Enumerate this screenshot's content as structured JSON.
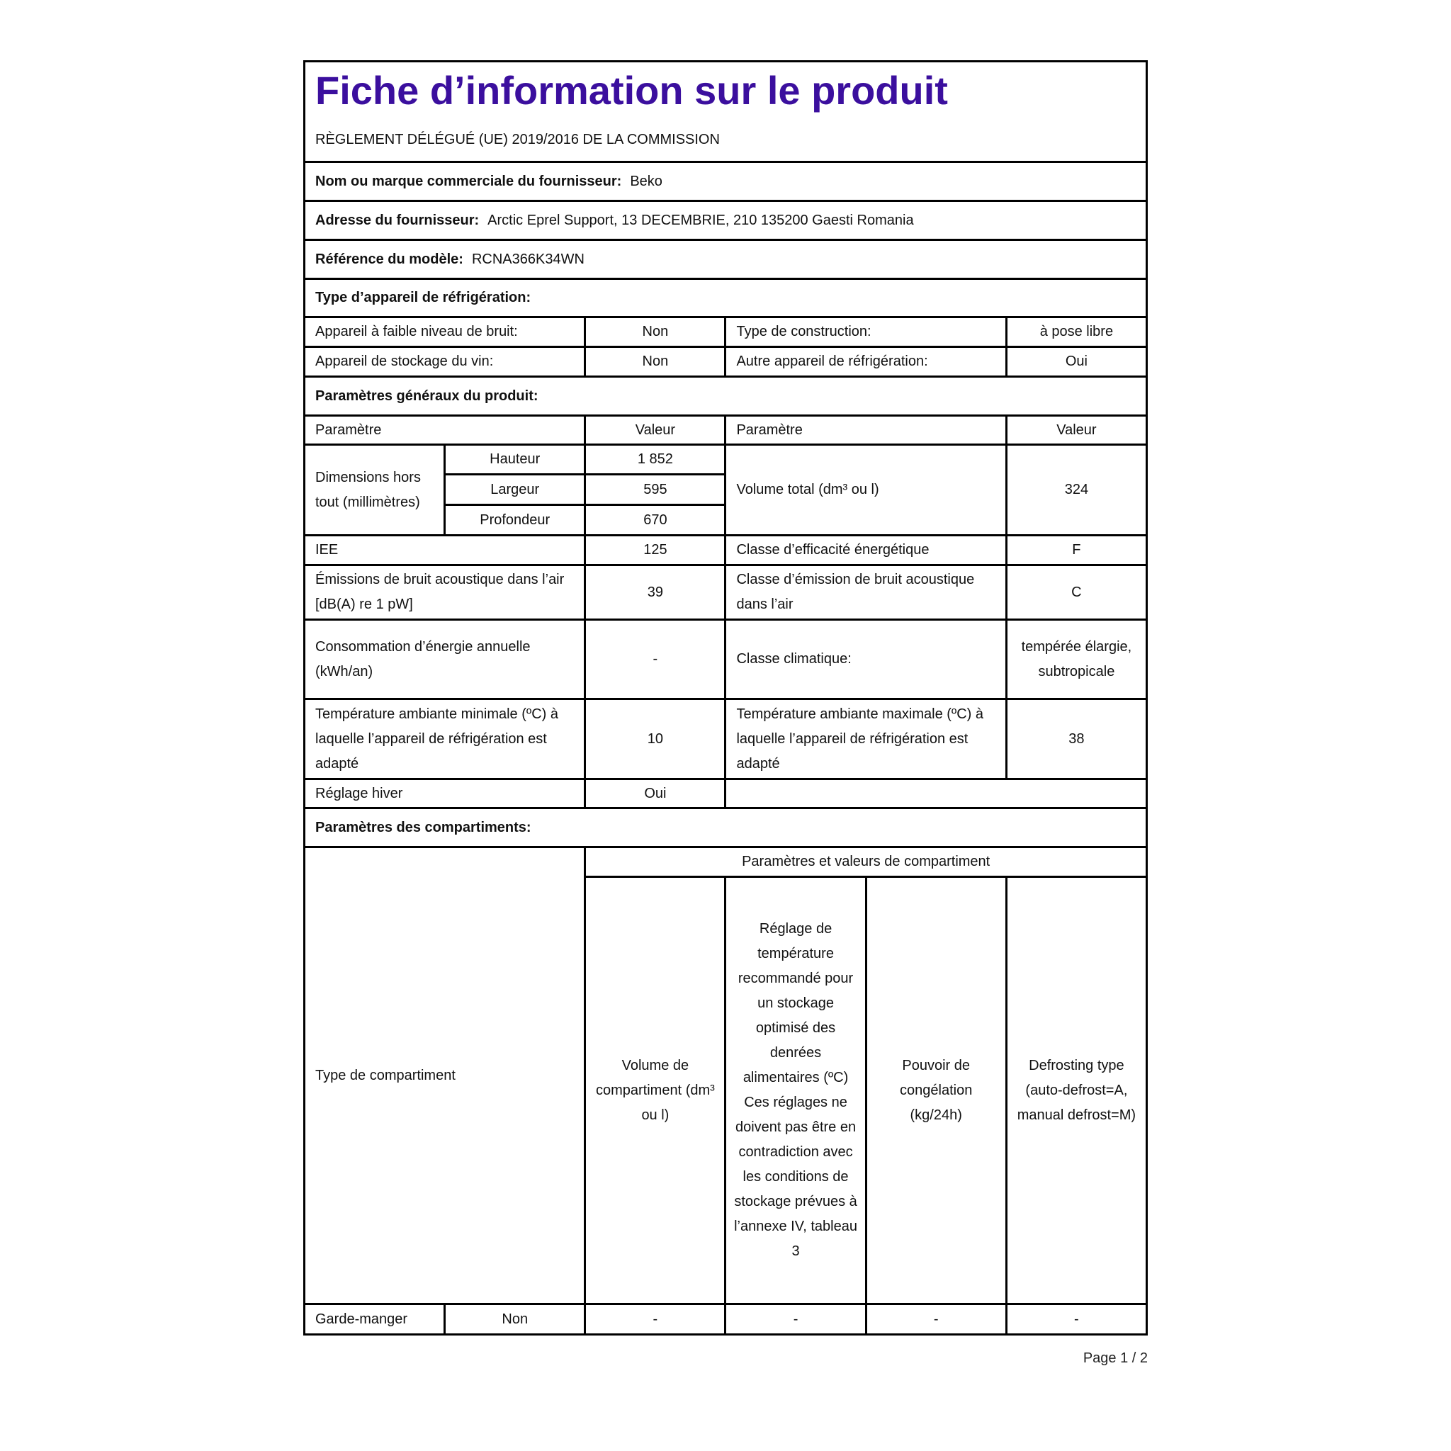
{
  "header": {
    "title": "Fiche d’information sur le produit",
    "regulation": "RÈGLEMENT DÉLÉGUÉ (UE) 2019/2016 DE LA COMMISSION"
  },
  "supplier": {
    "name_label": "Nom ou marque commerciale du fournisseur:",
    "name_value": "Beko",
    "address_label": "Adresse du fournisseur:",
    "address_value": "Arctic Eprel Support, 13 DECEMBRIE, 210 135200 Gaesti Romania",
    "model_label": "Référence du modèle:",
    "model_value": "RCNA366K34WN"
  },
  "appliance_type": {
    "heading": "Type d’appareil de réfrigération:",
    "low_noise_label": "Appareil à faible niveau de bruit:",
    "low_noise_value": "Non",
    "construction_label": "Type de construction:",
    "construction_value": "à pose libre",
    "wine_label": "Appareil de stockage du vin:",
    "wine_value": "Non",
    "other_label": "Autre appareil de réfrigération:",
    "other_value": "Oui"
  },
  "general": {
    "heading": "Paramètres généraux du produit:",
    "col_param": "Paramètre",
    "col_value": "Valeur",
    "dimensions_label": "Dimensions hors tout (millimètres)",
    "height_label": "Hauteur",
    "height_value": "1 852",
    "width_label": "Largeur",
    "width_value": "595",
    "depth_label": "Profondeur",
    "depth_value": "670",
    "volume_label": "Volume total (dm³ ou l)",
    "volume_value": "324",
    "eei_label": "IEE",
    "eei_value": "125",
    "energy_class_label": "Classe d’efficacité énergétique",
    "energy_class_value": "F",
    "noise_label": "Émissions de bruit acoustique dans l’air [dB(A) re 1 pW]",
    "noise_value": "39",
    "noise_class_label": "Classe d’émission de bruit acoustique dans l’air",
    "noise_class_value": "C",
    "consumption_label": "Consommation d’énergie annuelle (kWh/an)",
    "consumption_value": "-",
    "climate_label": "Classe climatique:",
    "climate_value": "tempérée élargie, subtropicale",
    "min_temp_label": "Température ambiante minimale (ºC) à laquelle l’appareil de réfrigération est adapté",
    "min_temp_value": "10",
    "max_temp_label": "Température ambiante maximale (ºC) à laquelle l’appareil de réfrigération est adapté",
    "max_temp_value": "38",
    "winter_label": "Réglage hiver",
    "winter_value": "Oui"
  },
  "compartments": {
    "heading": "Paramètres des compartiments:",
    "group_header": "Paramètres et valeurs de compartiment",
    "type_label": "Type de compartiment",
    "volume_header": "Volume de compartiment (dm³ ou l)",
    "temp_header": "Réglage de température recommandé pour un stockage optimisé des denrées alimentaires (ºC) Ces réglages ne doivent pas être en contradiction avec les conditions de stockage prévues à l’annexe IV, tableau 3",
    "freezing_header": "Pouvoir de congélation (kg/24h)",
    "defrost_header": "Defrosting type (auto-defrost=A, manual defrost=M)",
    "rows": [
      {
        "name": "Garde-manger",
        "present": "Non",
        "volume": "-",
        "temp": "-",
        "freezing": "-",
        "defrost": "-"
      }
    ]
  },
  "footer": {
    "page": "Page 1 / 2"
  },
  "colors": {
    "title": "#3b0f9e",
    "border": "#000000"
  }
}
